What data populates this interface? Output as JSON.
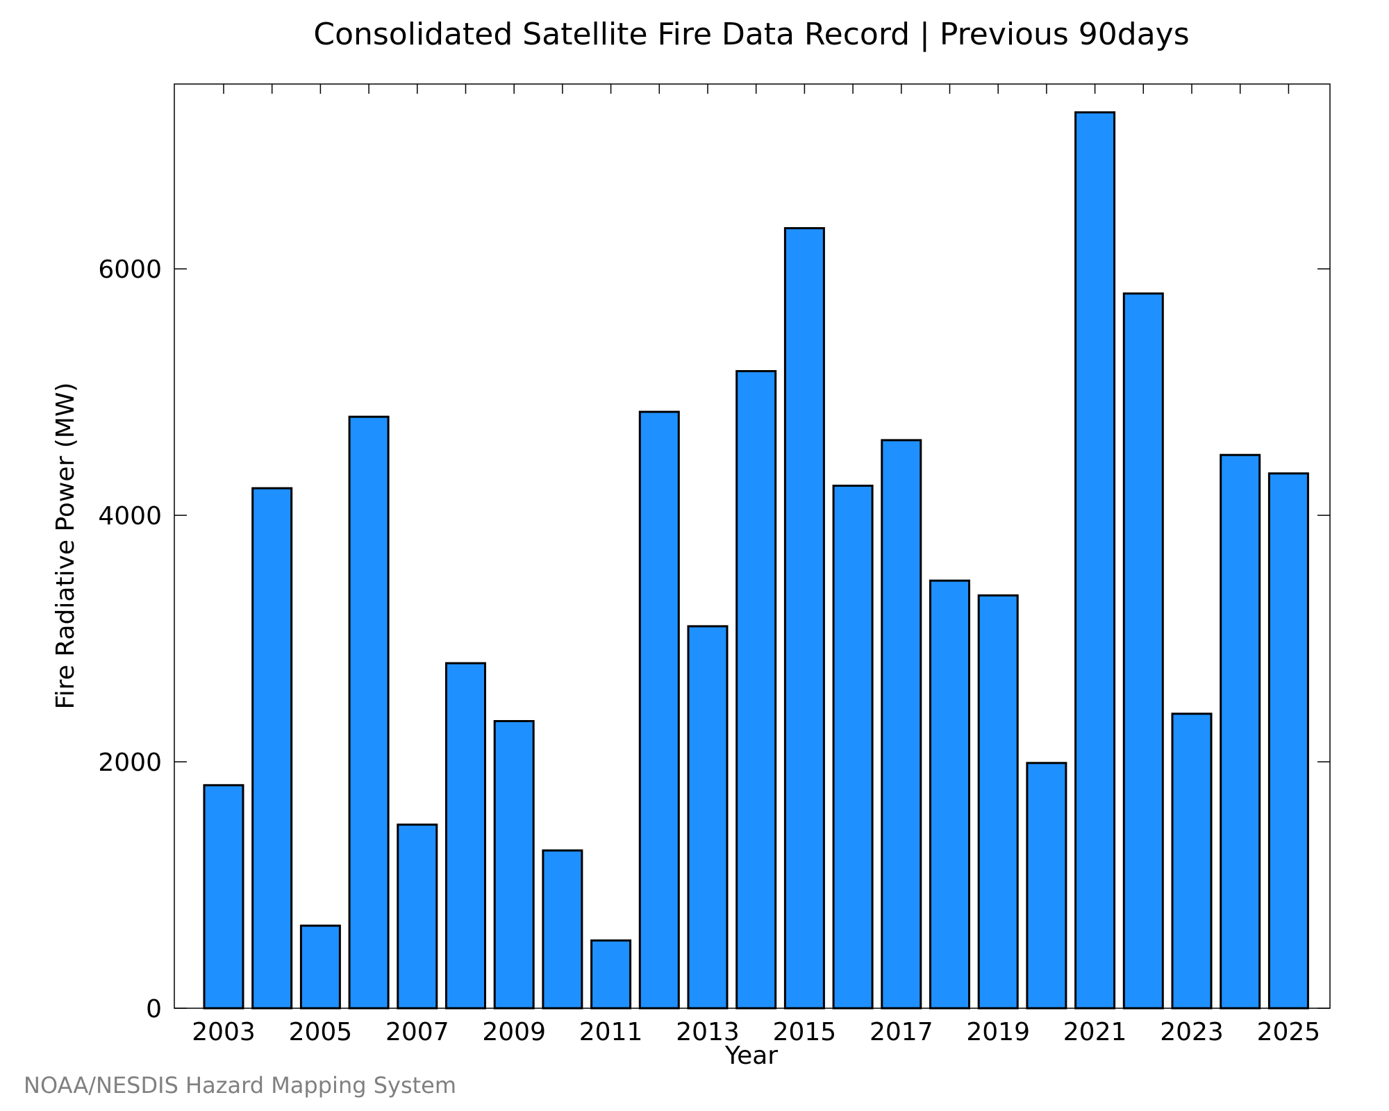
{
  "chart_data": {
    "type": "bar",
    "title": "Consolidated Satellite Fire Data Record | Previous 90days",
    "xlabel": "Year",
    "ylabel": "Fire Radiative Power (MW)",
    "categories": [
      "2003",
      "2004",
      "2005",
      "2006",
      "2007",
      "2008",
      "2009",
      "2010",
      "2011",
      "2012",
      "2013",
      "2014",
      "2015",
      "2016",
      "2017",
      "2018",
      "2019",
      "2020",
      "2021",
      "2022",
      "2023",
      "2024",
      "2025"
    ],
    "values": [
      1810,
      4220,
      670,
      4800,
      1490,
      2800,
      2330,
      1280,
      550,
      4840,
      3100,
      5170,
      6330,
      4240,
      4610,
      3470,
      3350,
      1990,
      7270,
      5800,
      2390,
      4490,
      4340
    ],
    "x_tick_labels": [
      "2003",
      "2005",
      "2007",
      "2009",
      "2011",
      "2013",
      "2015",
      "2017",
      "2019",
      "2021",
      "2023",
      "2025"
    ],
    "y_ticks": [
      0,
      2000,
      4000,
      6000
    ],
    "ylim": [
      0,
      7500
    ],
    "grid": false,
    "bar_color": "#1e90ff",
    "edge_color": "#000000"
  },
  "footer": {
    "credit": "NOAA/NESDIS Hazard Mapping System"
  }
}
